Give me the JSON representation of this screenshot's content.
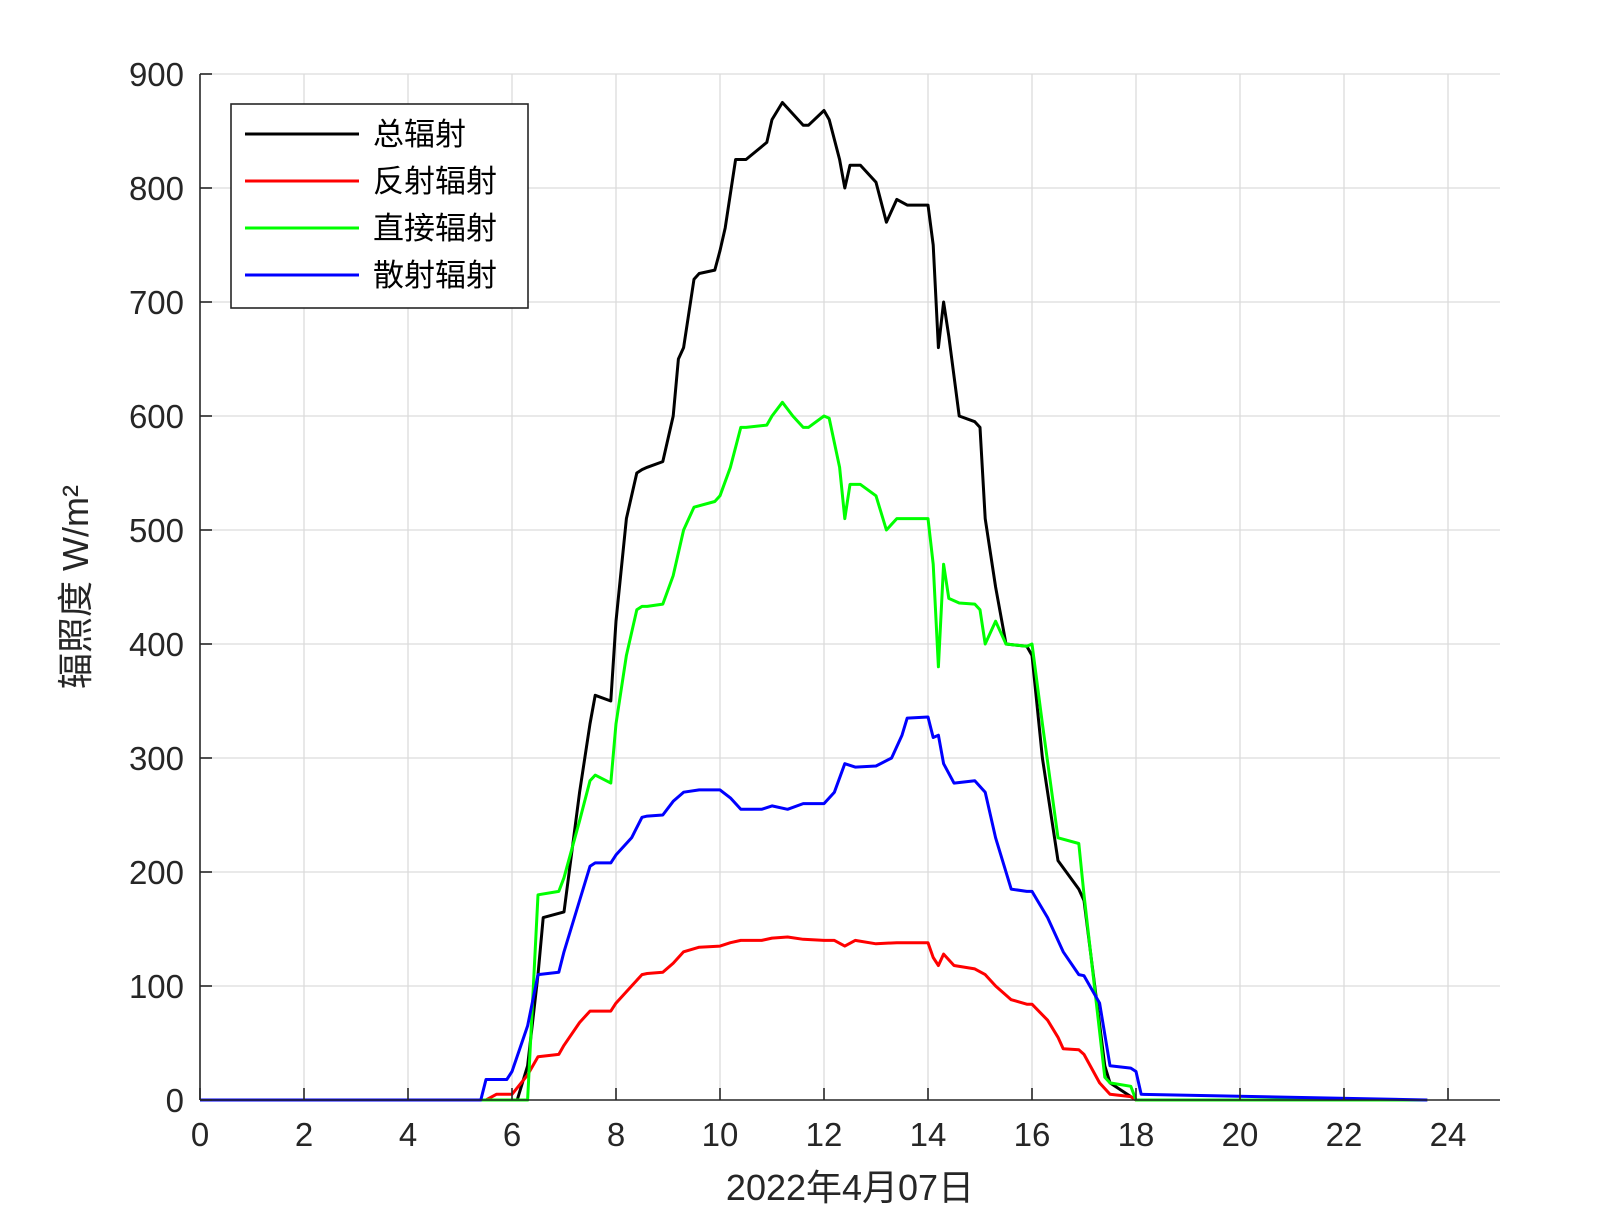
{
  "chart_data": {
    "type": "line",
    "xlabel": "2022年4月07日",
    "ylabel": "辐照度 W/m²",
    "xlim": [
      0,
      25
    ],
    "ylim": [
      0,
      900
    ],
    "xticks": [
      0,
      2,
      4,
      6,
      8,
      10,
      12,
      14,
      16,
      18,
      20,
      22,
      24
    ],
    "yticks": [
      0,
      100,
      200,
      300,
      400,
      500,
      600,
      700,
      800,
      900
    ],
    "grid": true,
    "legend_position": "top-left",
    "series": [
      {
        "name": "总辐射",
        "color": "#000000",
        "x": [
          0,
          5.9,
          6.1,
          6.3,
          6.5,
          6.6,
          7.0,
          7.3,
          7.5,
          7.6,
          7.9,
          8.0,
          8.2,
          8.4,
          8.5,
          8.6,
          8.9,
          9.1,
          9.2,
          9.3,
          9.5,
          9.6,
          9.9,
          10.0,
          10.1,
          10.3,
          10.5,
          10.9,
          11.0,
          11.2,
          11.4,
          11.6,
          11.7,
          12.0,
          12.1,
          12.3,
          12.4,
          12.5,
          12.7,
          13.0,
          13.2,
          13.4,
          13.6,
          14.0,
          14.1,
          14.2,
          14.3,
          14.4,
          14.6,
          14.9,
          15.0,
          15.1,
          15.3,
          15.5,
          15.9,
          16.0,
          16.2,
          16.5,
          16.9,
          17.0,
          17.4,
          17.5,
          18.0,
          23.6
        ],
        "y": [
          0,
          0,
          0,
          30,
          110,
          160,
          165,
          270,
          330,
          355,
          350,
          420,
          510,
          550,
          553,
          555,
          560,
          600,
          650,
          660,
          720,
          725,
          728,
          745,
          765,
          825,
          825,
          840,
          860,
          875,
          865,
          855,
          855,
          868,
          860,
          825,
          800,
          820,
          820,
          805,
          770,
          790,
          785,
          785,
          750,
          660,
          700,
          670,
          600,
          595,
          590,
          510,
          450,
          400,
          398,
          390,
          300,
          210,
          185,
          175,
          30,
          15,
          0,
          0
        ]
      },
      {
        "name": "反射辐射",
        "color": "#ff0000",
        "x": [
          0,
          5.5,
          5.7,
          6.0,
          6.3,
          6.5,
          6.9,
          7.0,
          7.3,
          7.5,
          7.6,
          7.9,
          8.0,
          8.3,
          8.5,
          8.6,
          8.9,
          9.1,
          9.3,
          9.6,
          10.0,
          10.2,
          10.4,
          10.8,
          11.0,
          11.3,
          11.6,
          12.0,
          12.2,
          12.4,
          12.6,
          13.0,
          13.4,
          13.6,
          14.0,
          14.1,
          14.2,
          14.3,
          14.5,
          14.9,
          15.1,
          15.3,
          15.6,
          15.9,
          16.0,
          16.3,
          16.5,
          16.6,
          16.9,
          17.0,
          17.3,
          17.5,
          17.9,
          18.0,
          23.6
        ],
        "y": [
          0,
          0,
          5,
          5,
          22,
          38,
          40,
          48,
          68,
          78,
          78,
          78,
          85,
          100,
          110,
          111,
          112,
          120,
          130,
          134,
          135,
          138,
          140,
          140,
          142,
          143,
          141,
          140,
          140,
          135,
          140,
          137,
          138,
          138,
          138,
          125,
          118,
          128,
          118,
          115,
          110,
          100,
          88,
          84,
          84,
          70,
          55,
          45,
          44,
          40,
          15,
          5,
          3,
          0,
          0
        ]
      },
      {
        "name": "直接辐射",
        "color": "#00ff00",
        "x": [
          0,
          6.3,
          6.5,
          6.9,
          7.0,
          7.3,
          7.5,
          7.6,
          7.9,
          8.0,
          8.2,
          8.4,
          8.5,
          8.6,
          8.9,
          9.1,
          9.3,
          9.5,
          9.9,
          10.0,
          10.2,
          10.4,
          10.5,
          10.9,
          11.0,
          11.2,
          11.4,
          11.6,
          11.7,
          12.0,
          12.1,
          12.3,
          12.4,
          12.5,
          12.7,
          13.0,
          13.2,
          13.4,
          13.6,
          14.0,
          14.1,
          14.2,
          14.3,
          14.4,
          14.6,
          14.9,
          15.0,
          15.1,
          15.3,
          15.5,
          15.9,
          16.0,
          16.2,
          16.5,
          16.9,
          17.0,
          17.4,
          17.5,
          17.9,
          18.0,
          23.6
        ],
        "y": [
          0,
          0,
          180,
          183,
          195,
          245,
          280,
          285,
          278,
          330,
          390,
          430,
          433,
          433,
          435,
          460,
          500,
          520,
          525,
          530,
          555,
          590,
          590,
          592,
          600,
          612,
          600,
          590,
          590,
          600,
          598,
          555,
          510,
          540,
          540,
          530,
          500,
          510,
          510,
          510,
          470,
          380,
          470,
          440,
          436,
          435,
          430,
          400,
          420,
          400,
          398,
          400,
          330,
          230,
          225,
          180,
          20,
          15,
          12,
          0,
          0
        ]
      },
      {
        "name": "散射辐射",
        "color": "#0000ff",
        "x": [
          0,
          5.4,
          5.5,
          5.9,
          6.0,
          6.3,
          6.5,
          6.9,
          7.0,
          7.3,
          7.5,
          7.6,
          7.9,
          8.0,
          8.3,
          8.5,
          8.6,
          8.9,
          9.1,
          9.3,
          9.6,
          10.0,
          10.2,
          10.4,
          10.8,
          11.0,
          11.3,
          11.6,
          12.0,
          12.2,
          12.4,
          12.6,
          13.0,
          13.3,
          13.5,
          13.6,
          14.0,
          14.1,
          14.2,
          14.3,
          14.5,
          14.9,
          15.1,
          15.3,
          15.6,
          15.9,
          16.0,
          16.3,
          16.6,
          16.9,
          17.0,
          17.3,
          17.5,
          17.9,
          18.0,
          18.1,
          23.6
        ],
        "y": [
          0,
          0,
          18,
          18,
          25,
          65,
          110,
          112,
          130,
          175,
          205,
          208,
          208,
          215,
          230,
          248,
          249,
          250,
          262,
          270,
          272,
          272,
          265,
          255,
          255,
          258,
          255,
          260,
          260,
          270,
          295,
          292,
          293,
          300,
          320,
          335,
          336,
          318,
          320,
          295,
          278,
          280,
          270,
          230,
          185,
          183,
          183,
          160,
          130,
          110,
          109,
          85,
          30,
          28,
          25,
          5,
          0
        ]
      }
    ]
  }
}
